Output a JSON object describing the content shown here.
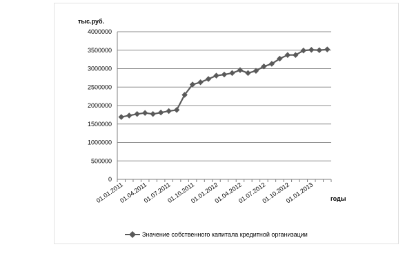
{
  "chart_data": {
    "type": "line",
    "ylabel": "тыс.руб.",
    "xlabel": "годы",
    "ylim": [
      0,
      4000000
    ],
    "ytick_step": 500000,
    "ytick_labels": [
      "0",
      "500000",
      "1000000",
      "1500000",
      "2000000",
      "2500000",
      "3000000",
      "3500000",
      "4000000"
    ],
    "x_tick_labels": [
      "01.01.2011",
      "01.04.2011",
      "01.07.2011",
      "01.10.2011",
      "01.01.2012",
      "01.04.2012",
      "01.07.2012",
      "01.10.2012",
      "01.01.2013"
    ],
    "x_tick_every": 3,
    "grid": true,
    "legend_position": "bottom",
    "series": [
      {
        "name": "Значение собственного капитала кредитной организации",
        "color": "#5a5a5a",
        "marker": "diamond",
        "values": [
          1690000,
          1730000,
          1770000,
          1800000,
          1770000,
          1810000,
          1850000,
          1880000,
          2290000,
          2570000,
          2630000,
          2720000,
          2810000,
          2840000,
          2880000,
          2960000,
          2880000,
          2940000,
          3060000,
          3130000,
          3270000,
          3370000,
          3370000,
          3490000,
          3510000,
          3500000,
          3520000
        ]
      }
    ]
  }
}
